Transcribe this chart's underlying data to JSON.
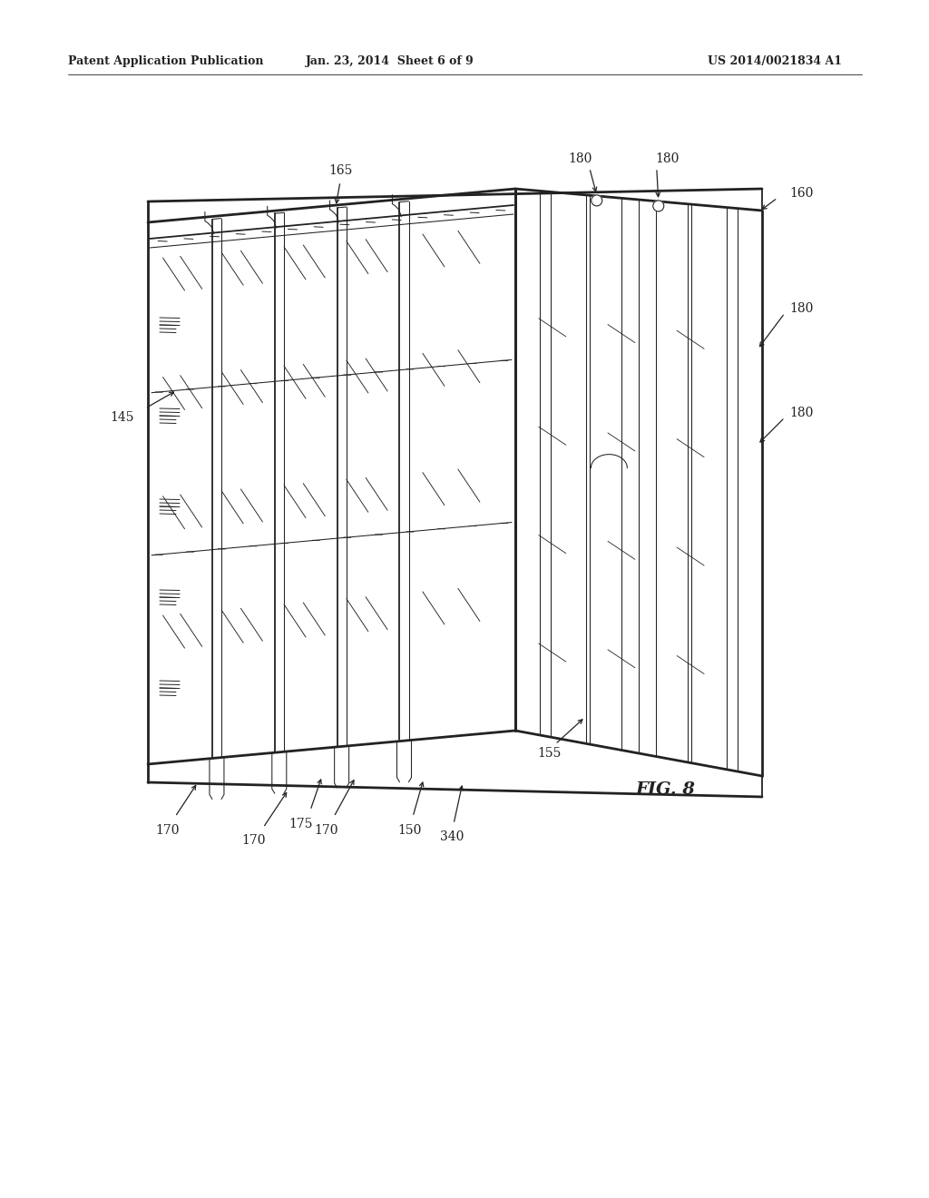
{
  "bg_color": "#ffffff",
  "header_left": "Patent Application Publication",
  "header_mid": "Jan. 23, 2014  Sheet 6 of 9",
  "header_right": "US 2014/0021834 A1",
  "fig_label": "FIG. 8",
  "lw_thick": 2.0,
  "lw_med": 1.3,
  "lw_thin": 0.75,
  "lw_xthin": 0.5,
  "draw_color": "#222222",
  "label_fontsize": 10,
  "header_fontsize": 9
}
